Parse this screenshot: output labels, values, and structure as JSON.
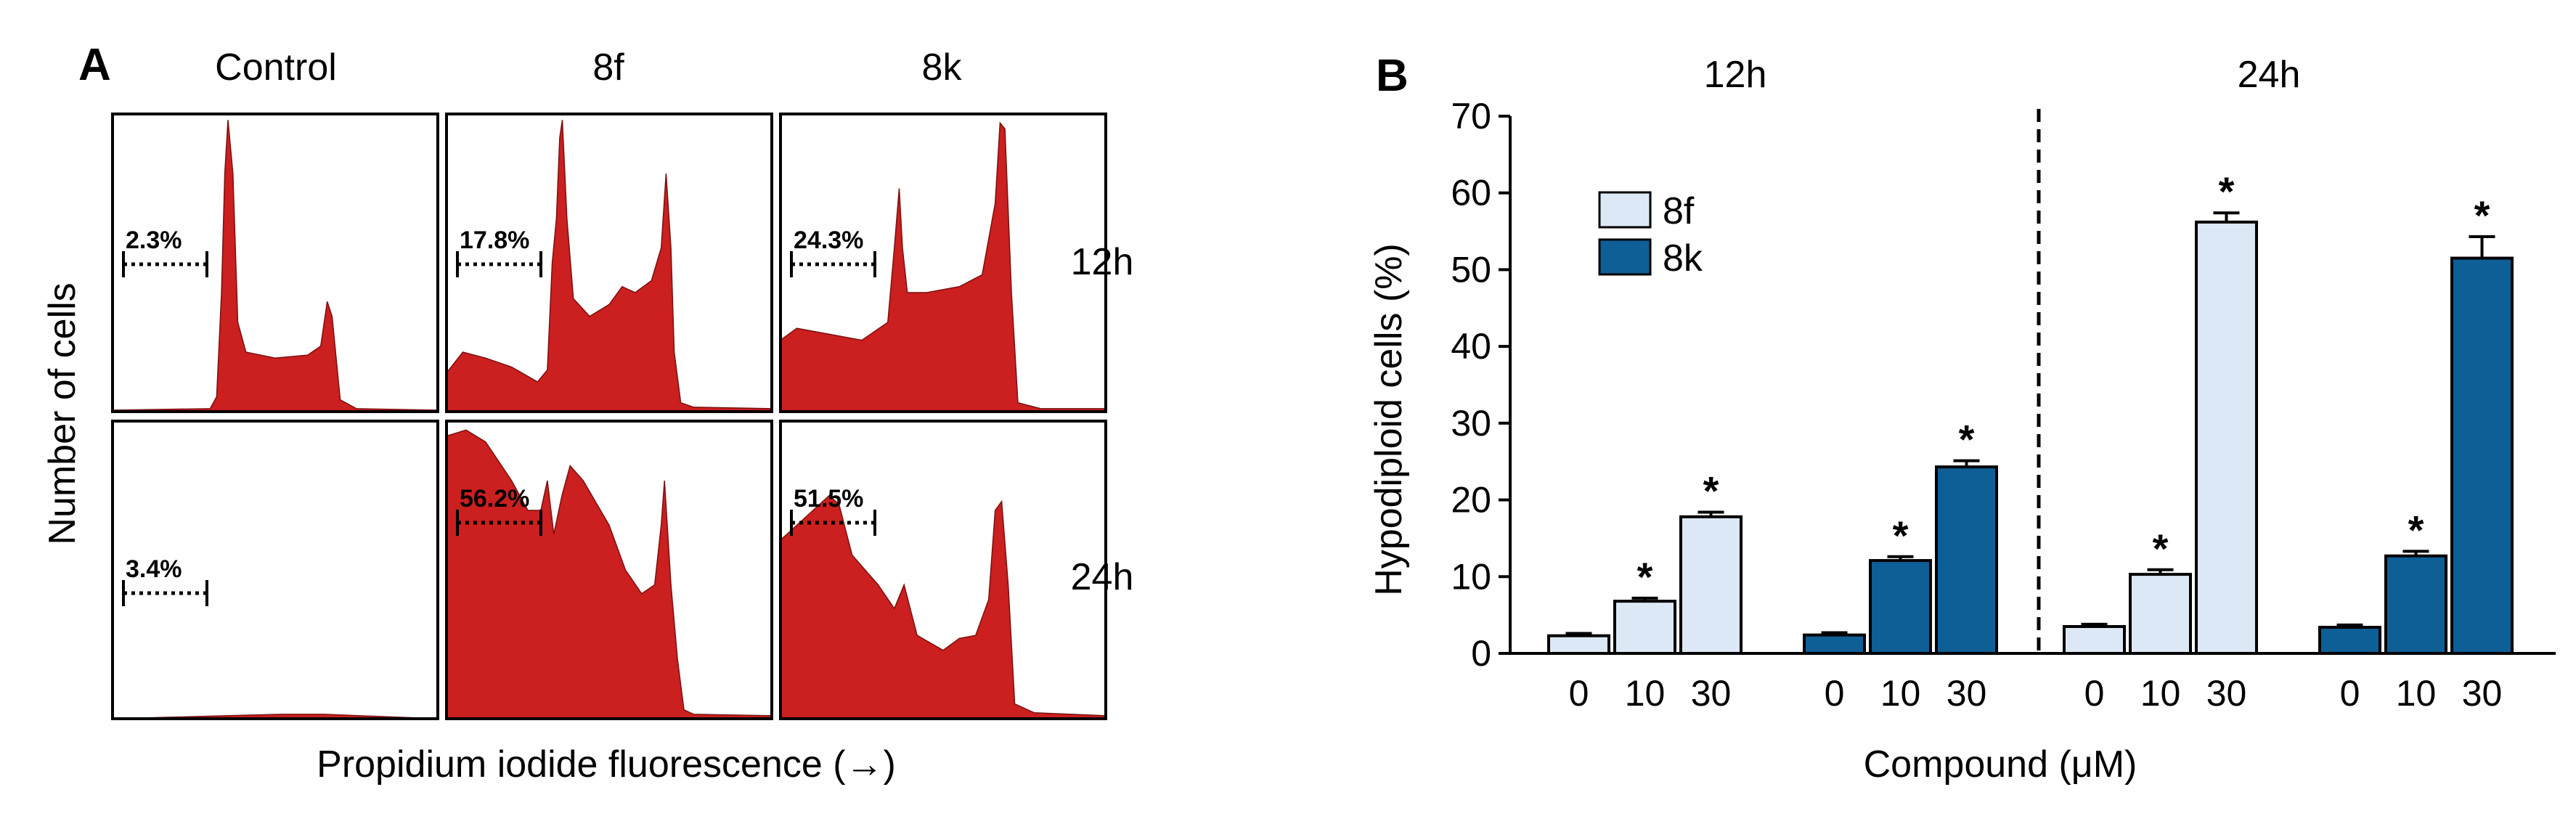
{
  "colors": {
    "histogram_fill": "#cc1f1f",
    "bar_8f": "#dce8f5",
    "bar_8k": "#0e5f96",
    "axis": "#000000"
  },
  "panel_a": {
    "letter": "A",
    "columns": [
      "Control",
      "8f",
      "8k"
    ],
    "rows": [
      "12h",
      "24h"
    ],
    "ylabel": "Number of cells",
    "xlabel": "Propidium iodide fluorescence (→)",
    "percentages": [
      [
        "2.3%",
        "17.8%",
        "24.3%"
      ],
      [
        "3.4%",
        "56.2%",
        "51.5%"
      ]
    ]
  },
  "chart_data": {
    "type": "bar",
    "panel": "B",
    "ylabel": "Hypodiploid cells (%)",
    "xlabel": "Compound (μM)",
    "ylim": [
      0,
      70
    ],
    "yticks": [
      0,
      10,
      20,
      30,
      40,
      50,
      60,
      70
    ],
    "groups": [
      "12h",
      "24h"
    ],
    "categories": [
      "0",
      "10",
      "30"
    ],
    "series": [
      {
        "name": "8f",
        "group": "12h",
        "values": [
          2.3,
          6.8,
          17.8
        ],
        "errors": [
          0.3,
          0.4,
          0.6
        ],
        "significant": [
          false,
          true,
          true
        ]
      },
      {
        "name": "8k",
        "group": "12h",
        "values": [
          2.4,
          12.1,
          24.3
        ],
        "errors": [
          0.3,
          0.5,
          0.8
        ],
        "significant": [
          false,
          true,
          true
        ]
      },
      {
        "name": "8f",
        "group": "24h",
        "values": [
          3.5,
          10.3,
          56.2
        ],
        "errors": [
          0.3,
          0.6,
          1.2
        ],
        "significant": [
          false,
          true,
          true
        ]
      },
      {
        "name": "8k",
        "group": "24h",
        "values": [
          3.4,
          12.7,
          51.5
        ],
        "errors": [
          0.3,
          0.6,
          2.8
        ],
        "significant": [
          false,
          true,
          true
        ]
      }
    ],
    "legend": [
      "8f",
      "8k"
    ],
    "star": "*"
  }
}
